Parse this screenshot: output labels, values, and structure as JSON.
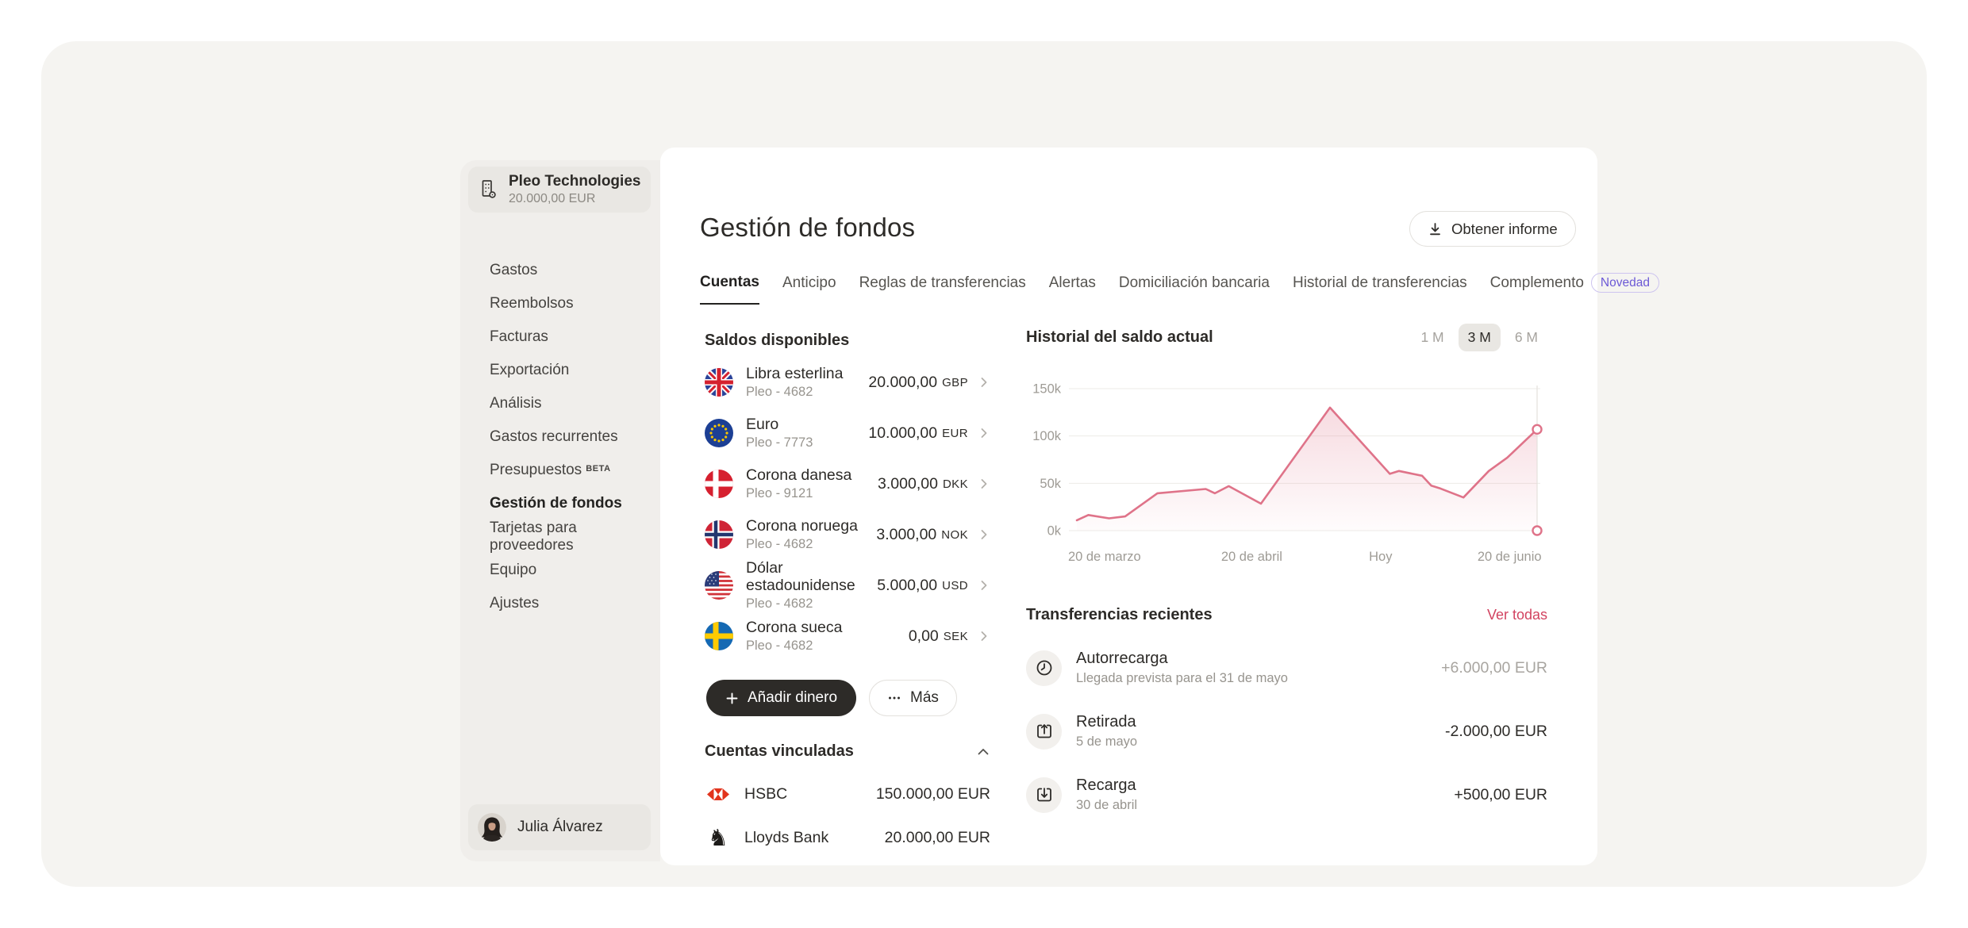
{
  "sidebar": {
    "company": {
      "name": "Pleo Technologies",
      "balance": "20.000,00 EUR"
    },
    "items": [
      {
        "label": "Gastos"
      },
      {
        "label": "Reembolsos"
      },
      {
        "label": "Facturas"
      },
      {
        "label": "Exportación"
      },
      {
        "label": "Análisis"
      },
      {
        "label": "Gastos recurrentes"
      },
      {
        "label": "Presupuestos",
        "badge": "BETA"
      },
      {
        "label": "Gestión de fondos",
        "active": true
      },
      {
        "label": "Tarjetas para proveedores"
      },
      {
        "label": "Equipo"
      },
      {
        "label": "Ajustes"
      }
    ],
    "user": {
      "name": "Julia Álvarez"
    }
  },
  "header": {
    "title": "Gestión de fondos",
    "report_button": "Obtener informe"
  },
  "tabs": {
    "items": [
      {
        "label": "Cuentas",
        "active": true
      },
      {
        "label": "Anticipo"
      },
      {
        "label": "Reglas de transferencias"
      },
      {
        "label": "Alertas"
      },
      {
        "label": "Domiciliación bancaria"
      },
      {
        "label": "Historial de transferencias"
      },
      {
        "label": "Complemento",
        "badge": "Novedad"
      }
    ]
  },
  "balances": {
    "title": "Saldos disponibles",
    "rows": [
      {
        "flag": "gb",
        "name": "Libra esterlina",
        "sub": "Pleo - 4682",
        "amount": "20.000,00",
        "code": "GBP"
      },
      {
        "flag": "eu",
        "name": "Euro",
        "sub": "Pleo - 7773",
        "amount": "10.000,00",
        "code": "EUR"
      },
      {
        "flag": "dk",
        "name": "Corona danesa",
        "sub": "Pleo - 9121",
        "amount": "3.000,00",
        "code": "DKK"
      },
      {
        "flag": "no",
        "name": "Corona noruega",
        "sub": "Pleo - 4682",
        "amount": "3.000,00",
        "code": "NOK"
      },
      {
        "flag": "us",
        "name": "Dólar estadounidense",
        "sub": "Pleo - 4682",
        "amount": "5.000,00",
        "code": "USD"
      },
      {
        "flag": "se",
        "name": "Corona sueca",
        "sub": "Pleo - 4682",
        "amount": "0,00",
        "code": "SEK"
      }
    ],
    "add_money_button": "Añadir dinero",
    "more_button": "Más"
  },
  "linked_accounts": {
    "title": "Cuentas vinculadas",
    "rows": [
      {
        "bank": "HSBC",
        "amount": "150.000,00 EUR"
      },
      {
        "bank": "Lloyds Bank",
        "amount": "20.000,00 EUR"
      }
    ]
  },
  "chart_data": {
    "type": "area",
    "title": "Historial del saldo actual",
    "range_options": [
      "1 M",
      "3 M",
      "6 M"
    ],
    "selected_range": "3 M",
    "ylim": [
      0,
      150000
    ],
    "y_ticks": [
      "150k",
      "100k",
      "50k",
      "0k"
    ],
    "y_tick_values": [
      150000,
      100000,
      50000,
      0
    ],
    "x_labels": [
      {
        "label": "20 de marzo",
        "pos": 0.06
      },
      {
        "label": "20 de abril",
        "pos": 0.38
      },
      {
        "label": "Hoy",
        "pos": 0.66
      },
      {
        "label": "20 de junio",
        "pos": 0.94
      }
    ],
    "series": [
      {
        "name": "Saldo actual",
        "points": [
          {
            "x": 0.0,
            "y": 11000
          },
          {
            "x": 0.025,
            "y": 16500
          },
          {
            "x": 0.07,
            "y": 13000
          },
          {
            "x": 0.105,
            "y": 15000
          },
          {
            "x": 0.175,
            "y": 39500
          },
          {
            "x": 0.28,
            "y": 44000
          },
          {
            "x": 0.3,
            "y": 39500
          },
          {
            "x": 0.33,
            "y": 47000
          },
          {
            "x": 0.4,
            "y": 28500
          },
          {
            "x": 0.55,
            "y": 130000
          },
          {
            "x": 0.68,
            "y": 60000
          },
          {
            "x": 0.7,
            "y": 63000
          },
          {
            "x": 0.75,
            "y": 58000
          },
          {
            "x": 0.77,
            "y": 47500
          },
          {
            "x": 0.79,
            "y": 44500
          },
          {
            "x": 0.84,
            "y": 35000
          },
          {
            "x": 0.895,
            "y": 63000
          },
          {
            "x": 0.935,
            "y": 77000
          },
          {
            "x": 1.0,
            "y": 107000
          }
        ]
      }
    ],
    "end_markers": [
      {
        "x": 1.0,
        "y": 107000
      },
      {
        "x": 1.0,
        "y": 0
      }
    ],
    "line_color": "#df7389",
    "fill_from": "rgba(223,115,137,0.26)",
    "fill_to": "rgba(223,115,137,0.02)",
    "grid_color": "#edebe7",
    "axis_text_color": "#9e9b95"
  },
  "transfers": {
    "title": "Transferencias recientes",
    "view_all": "Ver todas",
    "rows": [
      {
        "icon": "clock",
        "title": "Autorrecarga",
        "subtitle": "Llegada prevista para el 31 de mayo",
        "amount": "+6.000,00 EUR",
        "pending": true
      },
      {
        "icon": "withdraw",
        "title": "Retirada",
        "subtitle": "5 de mayo",
        "amount": "-2.000,00 EUR"
      },
      {
        "icon": "deposit",
        "title": "Recarga",
        "subtitle": "30 de abril",
        "amount": "+500,00 EUR"
      }
    ]
  },
  "colors": {
    "accent_line": "#df7389",
    "link_red": "#d24360",
    "novedad_purple": "#6c59d6",
    "dark_text": "#2d2b28",
    "muted_text": "#97948e"
  }
}
